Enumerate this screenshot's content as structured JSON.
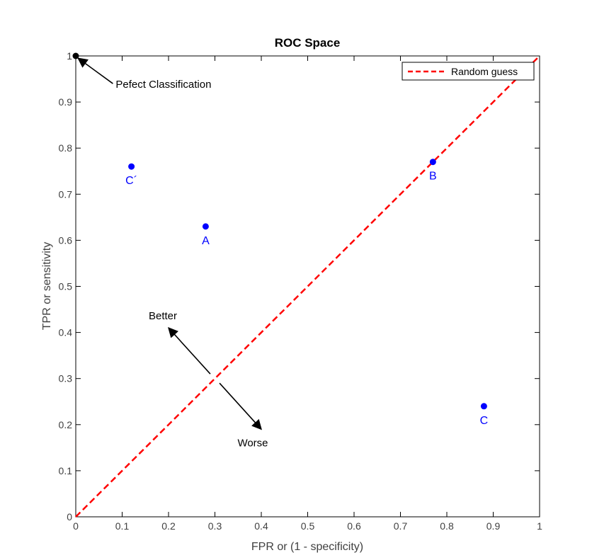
{
  "chart_data": {
    "type": "scatter",
    "title": "ROC Space",
    "xlabel": "FPR or (1 - specificity)",
    "ylabel": "TPR or sensitivity",
    "xlim": [
      0,
      1
    ],
    "ylim": [
      0,
      1
    ],
    "xticks": [
      0,
      0.1,
      0.2,
      0.3,
      0.4,
      0.5,
      0.6,
      0.7,
      0.8,
      0.9,
      1
    ],
    "yticks": [
      0,
      0.1,
      0.2,
      0.3,
      0.4,
      0.5,
      0.6,
      0.7,
      0.8,
      0.9,
      1
    ],
    "xtick_labels": [
      "0",
      "0.1",
      "0.2",
      "0.3",
      "0.4",
      "0.5",
      "0.6",
      "0.7",
      "0.8",
      "0.9",
      "1"
    ],
    "ytick_labels": [
      "0",
      "0.1",
      "0.2",
      "0.3",
      "0.4",
      "0.5",
      "0.6",
      "0.7",
      "0.8",
      "0.9",
      "1"
    ],
    "grid": false,
    "legend": {
      "placement": "top-right",
      "entries": [
        "Random guess"
      ]
    },
    "series": [
      {
        "name": "Random guess",
        "kind": "line",
        "style": "dashed",
        "color": "#ff0000",
        "x": [
          0,
          1
        ],
        "y": [
          0,
          1
        ]
      }
    ],
    "points": [
      {
        "label": "A",
        "x": 0.28,
        "y": 0.63,
        "color": "#0000ff"
      },
      {
        "label": "B",
        "x": 0.77,
        "y": 0.77,
        "color": "#0000ff"
      },
      {
        "label": "C",
        "x": 0.88,
        "y": 0.24,
        "color": "#0000ff"
      },
      {
        "label": "C´",
        "x": 0.12,
        "y": 0.76,
        "color": "#0000ff"
      }
    ],
    "perfect_point": {
      "x": 0,
      "y": 1,
      "color": "#000000"
    },
    "annotations": [
      {
        "text": "Pefect Classification",
        "arrow_from": [
          0.08,
          0.94
        ],
        "arrow_to": [
          0.005,
          0.995
        ]
      },
      {
        "text": "Better",
        "arrow_from": [
          0.29,
          0.31
        ],
        "arrow_to": [
          0.2,
          0.41
        ]
      },
      {
        "text": "Worse",
        "arrow_from": [
          0.31,
          0.29
        ],
        "arrow_to": [
          0.4,
          0.19
        ]
      }
    ]
  }
}
